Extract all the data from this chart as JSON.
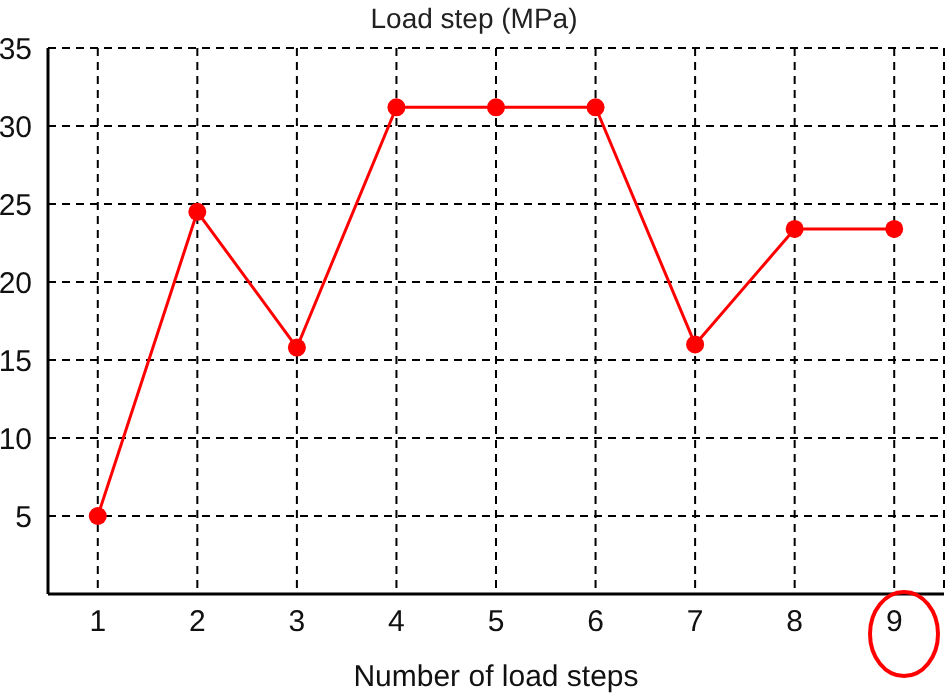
{
  "chart_data": {
    "type": "line",
    "title": "Load step (MPa)",
    "xlabel": "Number of load steps",
    "x": [
      1,
      2,
      3,
      4,
      5,
      6,
      7,
      8,
      9
    ],
    "series": [
      {
        "color": "#ff0000",
        "values": [
          5,
          24.5,
          15.8,
          31.2,
          31.2,
          31.2,
          16,
          23.4,
          23.4
        ]
      }
    ],
    "xlim": [
      0.5,
      9.5
    ],
    "xticks": [
      1,
      2,
      3,
      4,
      5,
      6,
      7,
      8,
      9
    ],
    "ylim": [
      0,
      35
    ],
    "yticks": [
      5,
      10,
      15,
      20,
      25,
      30,
      35
    ],
    "grid": true,
    "marker": "circle",
    "line_style": "solid"
  }
}
